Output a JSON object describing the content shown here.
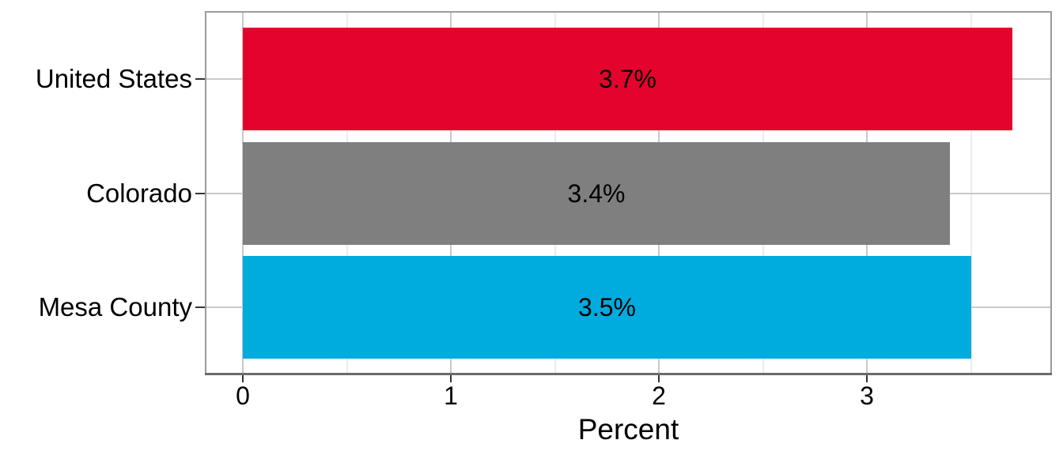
{
  "chart_data": {
    "type": "bar",
    "orientation": "horizontal",
    "title": "",
    "xlabel": "Percent",
    "ylabel": "",
    "categories": [
      "United States",
      "Colorado",
      "Mesa County"
    ],
    "values": [
      3.7,
      3.4,
      3.5
    ],
    "value_labels": [
      "3.7%",
      "3.4%",
      "3.5%"
    ],
    "bar_colors": [
      "#E4032D",
      "#7F7F7F",
      "#00ABDE"
    ],
    "xlim": [
      0,
      3.89
    ],
    "x_major_ticks": [
      0,
      1,
      2,
      3
    ],
    "x_tick_labels": [
      "0",
      "1",
      "2",
      "3"
    ],
    "x_minor_ticks": [
      0.5,
      1.5,
      2.5,
      3.5
    ],
    "grid": true,
    "legend": "none"
  },
  "colors": {
    "major_grid": "#C9C9C9",
    "minor_grid": "#ECECEC",
    "panel_border": "#9B9B9B",
    "axis_line": "#6B6B6B",
    "tick_mark": "#333333",
    "text": "#000000",
    "background": "#FFFFFF"
  }
}
